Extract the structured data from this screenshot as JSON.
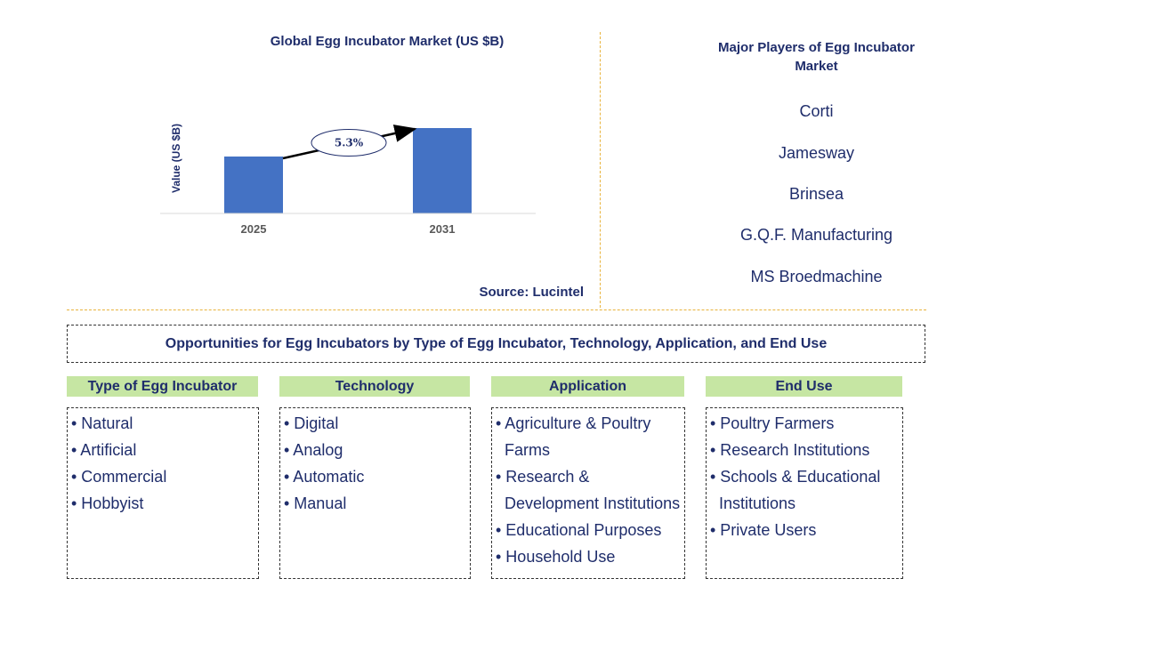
{
  "chart_data": {
    "type": "bar",
    "title": "Global Egg Incubator Market (US $B)",
    "ylabel": "Value (US $B)",
    "xlabel": "",
    "categories": [
      "2025",
      "2031"
    ],
    "values": [
      1.0,
      1.5
    ],
    "ylim": [
      0,
      1.5
    ],
    "grid": false,
    "annotation": "5.3%",
    "bar_color": "#4472c4"
  },
  "source": "Source: Lucintel",
  "players": {
    "title": "Major Players of Egg Incubator Market",
    "items": [
      "Corti",
      "Jamesway",
      "Brinsea",
      "G.Q.F. Manufacturing",
      "MS Broedmachine"
    ]
  },
  "opportunities": {
    "title": "Opportunities for Egg Incubators by Type of Egg Incubator, Technology, Application, and End Use",
    "categories": [
      {
        "header": "Type of Egg Incubator",
        "lines": [
          "• Natural",
          "• Artificial",
          "• Commercial",
          "• Hobbyist"
        ]
      },
      {
        "header": "Technology",
        "lines": [
          "• Digital",
          "• Analog",
          "• Automatic",
          "• Manual"
        ]
      },
      {
        "header": "Application",
        "lines": [
          "• Agriculture & Poultry",
          "Farms",
          "• Research &",
          "Development Institutions",
          "• Educational Purposes",
          "• Household Use"
        ]
      },
      {
        "header": "End Use",
        "lines": [
          "• Poultry Farmers",
          "• Research Institutions",
          "• Schools & Educational",
          "Institutions",
          "• Private Users"
        ]
      }
    ]
  },
  "colors": {
    "text": "#1f2d6b",
    "header_bg": "#c6e6a3",
    "divider": "#e8b33c"
  }
}
